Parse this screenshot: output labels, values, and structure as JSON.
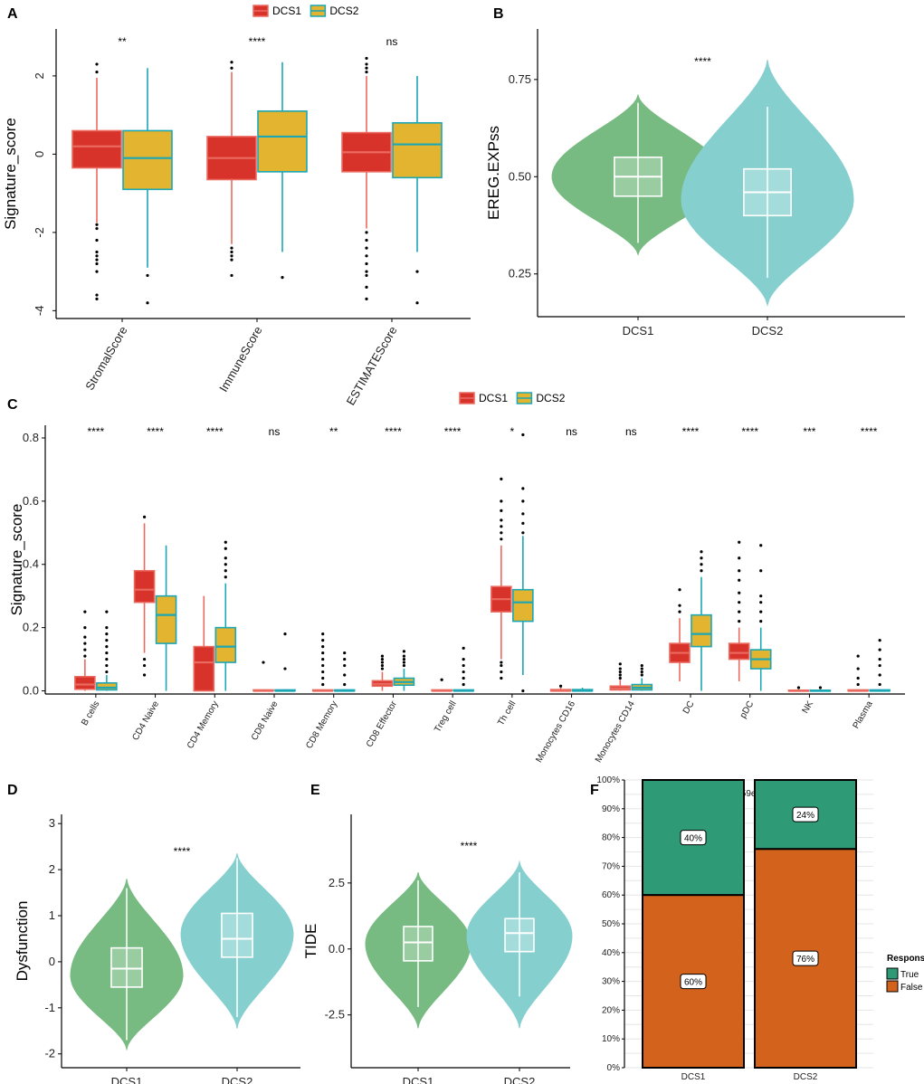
{
  "colors": {
    "dcs1_fill": "#D7332A",
    "dcs1_line": "#EB6A5F",
    "dcs2_fill": "#E2B42F",
    "dcs2_line": "#1BA7B5",
    "violin1": "#78BB82",
    "violin2": "#86CFCF",
    "true": "#2E9A76",
    "false": "#D3621C"
  },
  "chart_data": [
    {
      "panel": "A",
      "type": "box",
      "ylabel": "Signature_score",
      "ylim": [
        -4.2,
        3.2
      ],
      "yticks": [
        2,
        0,
        -2,
        -4
      ],
      "legend": [
        "DCS1",
        "DCS2"
      ],
      "categories": [
        "StromalScore",
        "ImmuneScore",
        "ESTIMATEScore"
      ],
      "significance": [
        "**",
        "****",
        "ns"
      ],
      "series": [
        {
          "name": "DCS1",
          "boxes": [
            {
              "q1": -0.35,
              "med": 0.2,
              "q3": 0.6,
              "wlo": -1.75,
              "whi": 1.95,
              "out": [
                2.1,
                2.3,
                -1.8,
                -1.9,
                -2.2,
                -2.5,
                -2.6,
                -2.7,
                -2.8,
                -3.0,
                -3.6,
                -3.7
              ]
            },
            {
              "q1": -0.65,
              "med": -0.1,
              "q3": 0.45,
              "wlo": -2.3,
              "whi": 2.1,
              "out": [
                2.2,
                2.35,
                -2.4,
                -2.5,
                -2.6,
                -2.7,
                -3.1
              ]
            },
            {
              "q1": -0.45,
              "med": 0.05,
              "q3": 0.55,
              "wlo": -1.9,
              "whi": 2.0,
              "out": [
                2.1,
                2.2,
                2.3,
                2.45,
                -2.0,
                -2.2,
                -2.4,
                -2.6,
                -2.8,
                -3.0,
                -3.1,
                -3.4,
                -3.7
              ]
            }
          ]
        },
        {
          "name": "DCS2",
          "boxes": [
            {
              "q1": -0.9,
              "med": -0.1,
              "q3": 0.6,
              "wlo": -2.9,
              "whi": 2.2,
              "out": [
                -3.1,
                -3.8
              ]
            },
            {
              "q1": -0.45,
              "med": 0.45,
              "q3": 1.1,
              "wlo": -2.5,
              "whi": 2.35,
              "out": [
                -3.15
              ]
            },
            {
              "q1": -0.6,
              "med": 0.25,
              "q3": 0.8,
              "wlo": -2.5,
              "whi": 2.0,
              "out": [
                -3.0,
                -3.8
              ]
            }
          ]
        }
      ]
    },
    {
      "panel": "B",
      "type": "violin",
      "ylabel": "EREG.EXPss",
      "ylim": [
        0.14,
        0.88
      ],
      "yticks": [
        0.75,
        0.5,
        0.25
      ],
      "categories": [
        "DCS1",
        "DCS2"
      ],
      "significance": "****",
      "violins": [
        {
          "lo": 0.3,
          "hi": 0.71,
          "peak": 0.5,
          "q1": 0.45,
          "med": 0.5,
          "q3": 0.55,
          "wlo": 0.33,
          "whi": 0.69
        },
        {
          "lo": 0.17,
          "hi": 0.8,
          "peak": 0.44,
          "q1": 0.4,
          "med": 0.46,
          "q3": 0.52,
          "wlo": 0.24,
          "whi": 0.68
        }
      ]
    },
    {
      "panel": "C",
      "type": "box",
      "ylabel": "Signature_score",
      "ylim": [
        -0.01,
        0.84
      ],
      "yticks": [
        0.8,
        0.6,
        0.4,
        0.2,
        0.0
      ],
      "legend": [
        "DCS1",
        "DCS2"
      ],
      "categories": [
        "B cells",
        "CD4 Naive",
        "CD4 Memory",
        "CD8 Naive",
        "CD8 Memory",
        "CD8 Effector",
        "Treg cell",
        "Th cell",
        "Monocytes CD16",
        "Monocytes CD14",
        "DC",
        "pDC",
        "NK",
        "Plasma"
      ],
      "significance": [
        "****",
        "****",
        "****",
        "ns",
        "**",
        "****",
        "****",
        "*",
        "ns",
        "ns",
        "****",
        "****",
        "***",
        "****"
      ],
      "series": [
        {
          "name": "DCS1",
          "boxes": [
            {
              "q1": 0.005,
              "med": 0.02,
              "q3": 0.045,
              "wlo": 0.0,
              "whi": 0.1,
              "out": [
                0.11,
                0.13,
                0.15,
                0.17,
                0.2,
                0.25
              ]
            },
            {
              "q1": 0.28,
              "med": 0.32,
              "q3": 0.38,
              "wlo": 0.12,
              "whi": 0.53,
              "out": [
                0.1,
                0.08,
                0.05,
                0.55
              ]
            },
            {
              "q1": 0.0,
              "med": 0.09,
              "q3": 0.14,
              "wlo": 0.0,
              "whi": 0.3,
              "out": []
            },
            {
              "q1": 0.0,
              "med": 0.0,
              "q3": 0.003,
              "wlo": 0.0,
              "whi": 0.005,
              "out": [
                0.09
              ]
            },
            {
              "q1": 0.0,
              "med": 0.0,
              "q3": 0.003,
              "wlo": 0.0,
              "whi": 0.005,
              "out": [
                0.02,
                0.04,
                0.06,
                0.08,
                0.1,
                0.12,
                0.14,
                0.16,
                0.18
              ]
            },
            {
              "q1": 0.015,
              "med": 0.022,
              "q3": 0.032,
              "wlo": 0.0,
              "whi": 0.06,
              "out": [
                0.07,
                0.08,
                0.09,
                0.1,
                0.11
              ]
            },
            {
              "q1": 0.0,
              "med": 0.0,
              "q3": 0.003,
              "wlo": 0.0,
              "whi": 0.005,
              "out": [
                0.035
              ]
            },
            {
              "q1": 0.25,
              "med": 0.29,
              "q3": 0.33,
              "wlo": 0.1,
              "whi": 0.46,
              "out": [
                0.09,
                0.08,
                0.06,
                0.04,
                0.48,
                0.5,
                0.52,
                0.54,
                0.57,
                0.6,
                0.67
              ]
            },
            {
              "q1": 0.0,
              "med": 0.0,
              "q3": 0.004,
              "wlo": 0.0,
              "whi": 0.01,
              "out": [
                0.015
              ]
            },
            {
              "q1": 0.003,
              "med": 0.008,
              "q3": 0.015,
              "wlo": 0.0,
              "whi": 0.035,
              "out": [
                0.04,
                0.05,
                0.06,
                0.07,
                0.085
              ]
            },
            {
              "q1": 0.09,
              "med": 0.12,
              "q3": 0.15,
              "wlo": 0.03,
              "whi": 0.23,
              "out": [
                0.25,
                0.27,
                0.32
              ]
            },
            {
              "q1": 0.1,
              "med": 0.12,
              "q3": 0.15,
              "wlo": 0.03,
              "whi": 0.2,
              "out": [
                0.22,
                0.25,
                0.28,
                0.31,
                0.35,
                0.38,
                0.42,
                0.47
              ]
            },
            {
              "q1": 0.0,
              "med": 0.0,
              "q3": 0.002,
              "wlo": 0.0,
              "whi": 0.004,
              "out": [
                0.01
              ]
            },
            {
              "q1": 0.0,
              "med": 0.0,
              "q3": 0.003,
              "wlo": 0.0,
              "whi": 0.005,
              "out": [
                0.02,
                0.04,
                0.07,
                0.11
              ]
            }
          ]
        },
        {
          "name": "DCS2",
          "boxes": [
            {
              "q1": 0.003,
              "med": 0.01,
              "q3": 0.025,
              "wlo": 0.0,
              "whi": 0.05,
              "out": [
                0.06,
                0.08,
                0.1,
                0.12,
                0.14,
                0.16,
                0.18,
                0.2,
                0.25
              ]
            },
            {
              "q1": 0.15,
              "med": 0.24,
              "q3": 0.3,
              "wlo": 0.0,
              "whi": 0.46,
              "out": []
            },
            {
              "q1": 0.09,
              "med": 0.14,
              "q3": 0.2,
              "wlo": 0.0,
              "whi": 0.34,
              "out": [
                0.36,
                0.38,
                0.4,
                0.42,
                0.45,
                0.47
              ]
            },
            {
              "q1": 0.0,
              "med": 0.0,
              "q3": 0.003,
              "wlo": 0.0,
              "whi": 0.005,
              "out": [
                0.07,
                0.18
              ]
            },
            {
              "q1": 0.0,
              "med": 0.0,
              "q3": 0.003,
              "wlo": 0.0,
              "whi": 0.005,
              "out": [
                0.02,
                0.05,
                0.08,
                0.1,
                0.12
              ]
            },
            {
              "q1": 0.018,
              "med": 0.028,
              "q3": 0.04,
              "wlo": 0.0,
              "whi": 0.07,
              "out": [
                0.08,
                0.09,
                0.1,
                0.11,
                0.125
              ]
            },
            {
              "q1": 0.0,
              "med": 0.0,
              "q3": 0.003,
              "wlo": 0.0,
              "whi": 0.005,
              "out": [
                0.02,
                0.04,
                0.06,
                0.08,
                0.1,
                0.135
              ]
            },
            {
              "q1": 0.22,
              "med": 0.28,
              "q3": 0.32,
              "wlo": 0.05,
              "whi": 0.49,
              "out": [
                0.0,
                0.5,
                0.53,
                0.56,
                0.6,
                0.64,
                0.81
              ]
            },
            {
              "q1": 0.0,
              "med": 0.0,
              "q3": 0.004,
              "wlo": 0.0,
              "whi": 0.01,
              "out": []
            },
            {
              "q1": 0.003,
              "med": 0.01,
              "q3": 0.02,
              "wlo": 0.0,
              "whi": 0.04,
              "out": [
                0.05,
                0.06,
                0.07,
                0.08
              ]
            },
            {
              "q1": 0.14,
              "med": 0.18,
              "q3": 0.24,
              "wlo": 0.0,
              "whi": 0.36,
              "out": [
                0.38,
                0.4,
                0.42,
                0.44
              ]
            },
            {
              "q1": 0.07,
              "med": 0.1,
              "q3": 0.13,
              "wlo": 0.0,
              "whi": 0.2,
              "out": [
                0.22,
                0.25,
                0.28,
                0.3,
                0.38,
                0.46
              ]
            },
            {
              "q1": 0.0,
              "med": 0.0,
              "q3": 0.002,
              "wlo": 0.0,
              "whi": 0.004,
              "out": [
                0.01
              ]
            },
            {
              "q1": 0.0,
              "med": 0.0,
              "q3": 0.003,
              "wlo": 0.0,
              "whi": 0.005,
              "out": [
                0.02,
                0.05,
                0.08,
                0.1,
                0.13,
                0.16
              ]
            }
          ]
        }
      ]
    },
    {
      "panel": "D",
      "type": "violin",
      "ylabel": "Dysfunction",
      "ylim": [
        -2.3,
        3.2
      ],
      "yticks": [
        3,
        2,
        1,
        0,
        -1,
        -2
      ],
      "categories": [
        "DCS1",
        "DCS2"
      ],
      "significance": "****",
      "violins": [
        {
          "lo": -1.9,
          "hi": 1.8,
          "peak": -0.3,
          "q1": -0.55,
          "med": -0.15,
          "q3": 0.3,
          "wlo": -1.7,
          "whi": 1.6
        },
        {
          "lo": -1.45,
          "hi": 2.35,
          "peak": 0.6,
          "q1": 0.1,
          "med": 0.5,
          "q3": 1.05,
          "wlo": -1.2,
          "whi": 2.25
        }
      ]
    },
    {
      "panel": "E",
      "type": "violin",
      "ylabel": "TIDE",
      "ylim": [
        -4.5,
        5.1
      ],
      "yticks": [
        2.5,
        0.0,
        -2.5
      ],
      "categories": [
        "DCS1",
        "DCS2"
      ],
      "significance": "****",
      "violins": [
        {
          "lo": -3.0,
          "hi": 2.9,
          "peak": 0.2,
          "q1": -0.45,
          "med": 0.25,
          "q3": 0.85,
          "wlo": -2.2,
          "whi": 2.6
        },
        {
          "lo": -3.0,
          "hi": 3.3,
          "peak": 0.5,
          "q1": -0.1,
          "med": 0.6,
          "q3": 1.15,
          "wlo": -1.8,
          "whi": 2.9
        }
      ]
    },
    {
      "panel": "F",
      "type": "stacked-bar",
      "title": "p  2.59e-04",
      "categories": [
        "DCS1",
        "DCS2"
      ],
      "yticks": [
        "100%",
        "90%",
        "80%",
        "70%",
        "60%",
        "50%",
        "40%",
        "30%",
        "20%",
        "10%",
        "0%"
      ],
      "series": [
        {
          "name": "True",
          "values": [
            40,
            24
          ],
          "labels": [
            "40%",
            "24%"
          ]
        },
        {
          "name": "False",
          "values": [
            60,
            76
          ],
          "labels": [
            "60%",
            "76%"
          ]
        }
      ],
      "legend_title": "Response",
      "legend": [
        "True",
        "False"
      ]
    }
  ]
}
